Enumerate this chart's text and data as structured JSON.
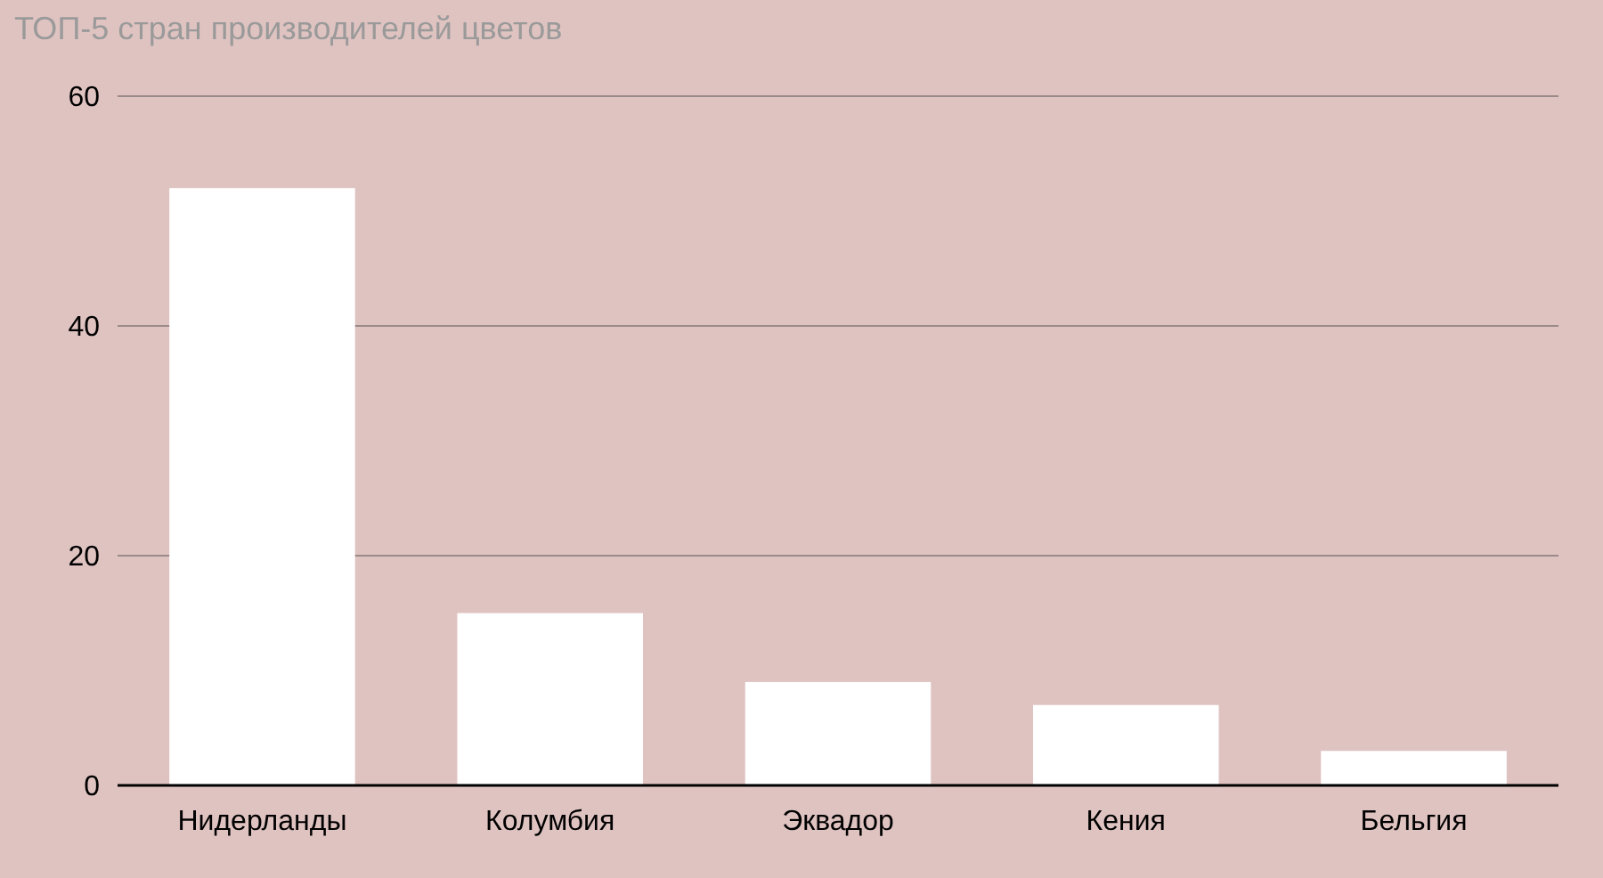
{
  "chart_data": {
    "type": "bar",
    "title": "ТОП-5 стран производителей цветов",
    "categories": [
      "Нидерланды",
      "Колумбия",
      "Эквадор",
      "Кения",
      "Бельгия"
    ],
    "values": [
      52,
      15,
      9,
      7,
      3
    ],
    "color": "#ffffff",
    "ylim": [
      0,
      60
    ],
    "yticks": [
      0,
      20,
      40,
      60
    ],
    "grid": "y"
  }
}
